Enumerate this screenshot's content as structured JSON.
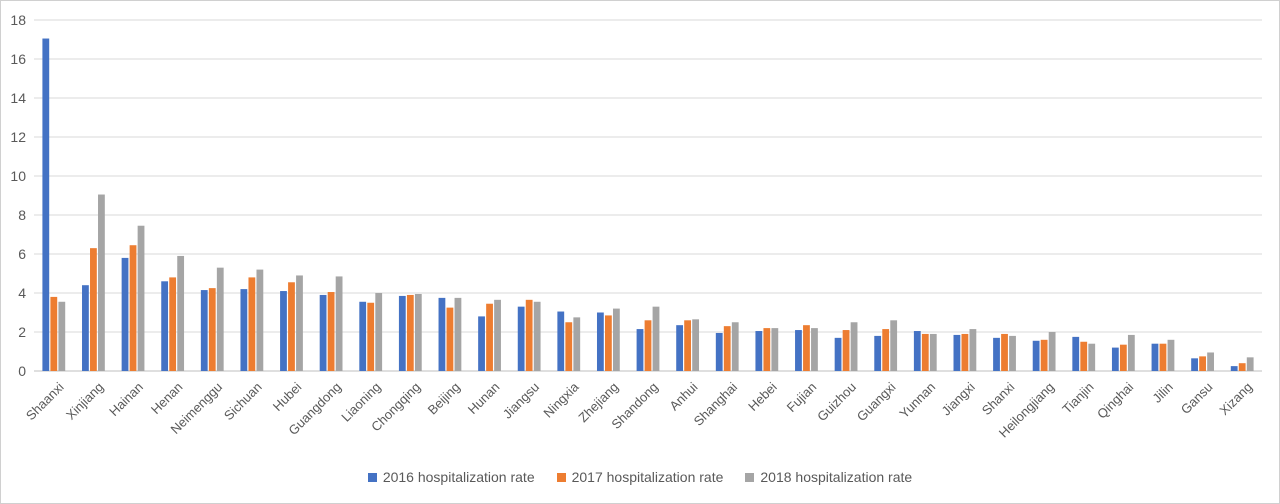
{
  "chart_data": {
    "type": "bar",
    "categories": [
      "Shaanxi",
      "Xinjiang",
      "Hainan",
      "Henan",
      "Neimenggu",
      "Sichuan",
      "Hubei",
      "Guangdong",
      "Liaoning",
      "Chongqing",
      "Beijing",
      "Hunan",
      "Jiangsu",
      "Ningxia",
      "Zhejiang",
      "Shandong",
      "Anhui",
      "Shanghai",
      "Hebei",
      "Fujian",
      "Guizhou",
      "Guangxi",
      "Yunnan",
      "Jiangxi",
      "Shanxi",
      "Heilongjiang",
      "Tianjin",
      "Qinghai",
      "Jilin",
      "Gansu",
      "Xizang"
    ],
    "series": [
      {
        "name": "2016 hospitalization rate",
        "color": "#4472C4",
        "values": [
          17.05,
          4.4,
          5.8,
          4.6,
          4.15,
          4.2,
          4.1,
          3.9,
          3.55,
          3.85,
          3.75,
          2.8,
          3.3,
          3.05,
          3.0,
          2.15,
          2.35,
          1.95,
          2.05,
          2.1,
          1.7,
          1.8,
          2.05,
          1.85,
          1.7,
          1.55,
          1.75,
          1.2,
          1.4,
          0.65,
          0.25
        ]
      },
      {
        "name": "2017 hospitalization rate",
        "color": "#ED7D31",
        "values": [
          3.8,
          6.3,
          6.45,
          4.8,
          4.25,
          4.8,
          4.55,
          4.05,
          3.5,
          3.9,
          3.25,
          3.45,
          3.65,
          2.5,
          2.85,
          2.6,
          2.6,
          2.3,
          2.2,
          2.35,
          2.1,
          2.15,
          1.9,
          1.9,
          1.9,
          1.6,
          1.5,
          1.35,
          1.4,
          0.75,
          0.4
        ]
      },
      {
        "name": "2018 hospitalization rate",
        "color": "#A5A5A5",
        "values": [
          3.55,
          9.05,
          7.45,
          5.9,
          5.3,
          5.2,
          4.9,
          4.85,
          4.0,
          3.95,
          3.75,
          3.65,
          3.55,
          2.75,
          3.2,
          3.3,
          2.65,
          2.5,
          2.2,
          2.2,
          2.5,
          2.6,
          1.9,
          2.15,
          1.8,
          2.0,
          1.4,
          1.85,
          1.6,
          0.95,
          0.7
        ]
      }
    ],
    "yticks": [
      "0",
      "2",
      "4",
      "6",
      "8",
      "10",
      "12",
      "14",
      "16",
      "18"
    ],
    "ylim": [
      0,
      18
    ],
    "grid": true,
    "legend_position": "bottom"
  }
}
